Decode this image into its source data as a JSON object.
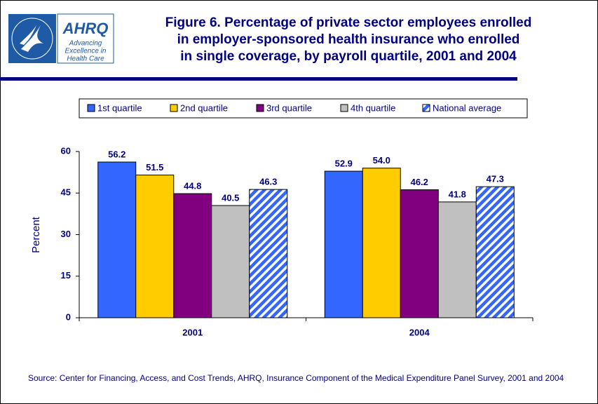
{
  "logo": {
    "name": "AHRQ",
    "tagline": [
      "Advancing",
      "Excellence in",
      "Health Care"
    ]
  },
  "chart_data": {
    "type": "bar",
    "title": [
      "Figure 6. Percentage of private sector employees enrolled",
      "in employer-sponsored health insurance who enrolled",
      "in single coverage, by payroll quartile, 2001 and 2004"
    ],
    "y_label": "Percent",
    "categories": [
      "2001",
      "2004"
    ],
    "series": [
      {
        "name": "1st quartile",
        "color": "#3366ff",
        "values": [
          56.2,
          52.9
        ]
      },
      {
        "name": "2nd quartile",
        "color": "#ffcc00",
        "values": [
          51.5,
          54
        ],
        "value_labels": [
          "51.5",
          "54.0"
        ]
      },
      {
        "name": "3rd quartile",
        "color": "#800080",
        "values": [
          44.8,
          46.2
        ]
      },
      {
        "name": "4th quartile",
        "color": "#c0c0c0",
        "values": [
          40.5,
          41.8
        ]
      },
      {
        "name": "National average",
        "color": "#3366ff",
        "pattern": "hatch",
        "values": [
          46.3,
          47.3
        ]
      }
    ],
    "ylim": [
      0,
      60
    ],
    "yticks": [
      0,
      15,
      30,
      45,
      60
    ],
    "grid": false,
    "legend": "top",
    "source": "Source: Center for Financing, Access, and Cost Trends, AHRQ, Insurance Component of the Medical Expenditure Panel Survey, 2001 and 2004"
  }
}
